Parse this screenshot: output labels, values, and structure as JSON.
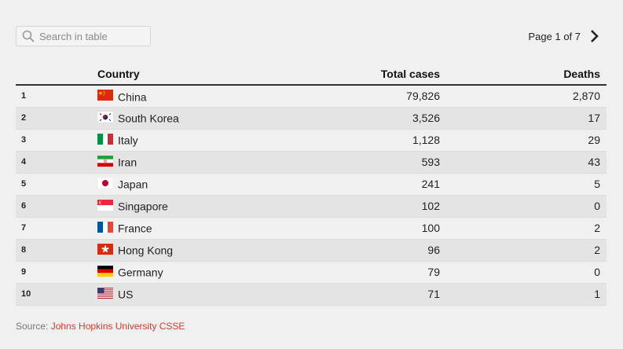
{
  "search": {
    "placeholder": "Search in table"
  },
  "pager": {
    "label": "Page 1 of 7"
  },
  "table": {
    "headers": {
      "rank": "",
      "country": "Country",
      "cases": "Total cases",
      "deaths": "Deaths"
    },
    "rows": [
      {
        "rank": "1",
        "flag": "china",
        "country": "China",
        "cases": "79,826",
        "deaths": "2,870"
      },
      {
        "rank": "2",
        "flag": "south-korea",
        "country": "South Korea",
        "cases": "3,526",
        "deaths": "17"
      },
      {
        "rank": "3",
        "flag": "italy",
        "country": "Italy",
        "cases": "1,128",
        "deaths": "29"
      },
      {
        "rank": "4",
        "flag": "iran",
        "country": "Iran",
        "cases": "593",
        "deaths": "43"
      },
      {
        "rank": "5",
        "flag": "japan",
        "country": "Japan",
        "cases": "241",
        "deaths": "5"
      },
      {
        "rank": "6",
        "flag": "singapore",
        "country": "Singapore",
        "cases": "102",
        "deaths": "0"
      },
      {
        "rank": "7",
        "flag": "france",
        "country": "France",
        "cases": "100",
        "deaths": "2"
      },
      {
        "rank": "8",
        "flag": "hong-kong",
        "country": "Hong Kong",
        "cases": "96",
        "deaths": "2"
      },
      {
        "rank": "9",
        "flag": "germany",
        "country": "Germany",
        "cases": "79",
        "deaths": "0"
      },
      {
        "rank": "10",
        "flag": "us",
        "country": "US",
        "cases": "71",
        "deaths": "1"
      }
    ]
  },
  "source": {
    "prefix": "Source: ",
    "link_text": "Johns Hopkins University CSSE"
  },
  "colors": {
    "link": "#d63a2b",
    "header_rule": "#333333",
    "stripe": "#e4e4e4"
  }
}
